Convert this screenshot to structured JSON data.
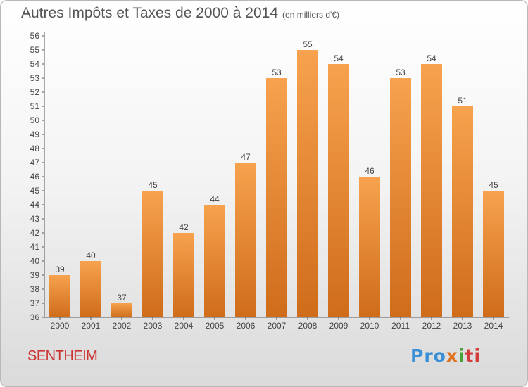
{
  "title": "Autres Impôts et Taxes de 2000 à 2014",
  "subtitle": "(en milliers d'€)",
  "location": "SENTHEIM",
  "logo": {
    "p1": "Pro",
    "p2": "x",
    "p3": "i",
    "p4": "ti"
  },
  "colors": {
    "bar_top": "#f7a24e",
    "bar_bottom": "#cf6c1a",
    "title": "#555555",
    "location": "#cc3333"
  },
  "chart_data": {
    "type": "bar",
    "categories": [
      "2000",
      "2001",
      "2002",
      "2003",
      "2004",
      "2005",
      "2006",
      "2007",
      "2008",
      "2009",
      "2010",
      "2011",
      "2012",
      "2013",
      "2014"
    ],
    "values": [
      39,
      40,
      37,
      45,
      42,
      44,
      47,
      53,
      55,
      54,
      46,
      53,
      54,
      51,
      45
    ],
    "ylim": [
      36,
      56
    ],
    "yticks": [
      36,
      37,
      38,
      39,
      40,
      41,
      42,
      43,
      44,
      45,
      46,
      47,
      48,
      49,
      50,
      51,
      52,
      53,
      54,
      55,
      56
    ],
    "grid": false,
    "legend": "none"
  }
}
